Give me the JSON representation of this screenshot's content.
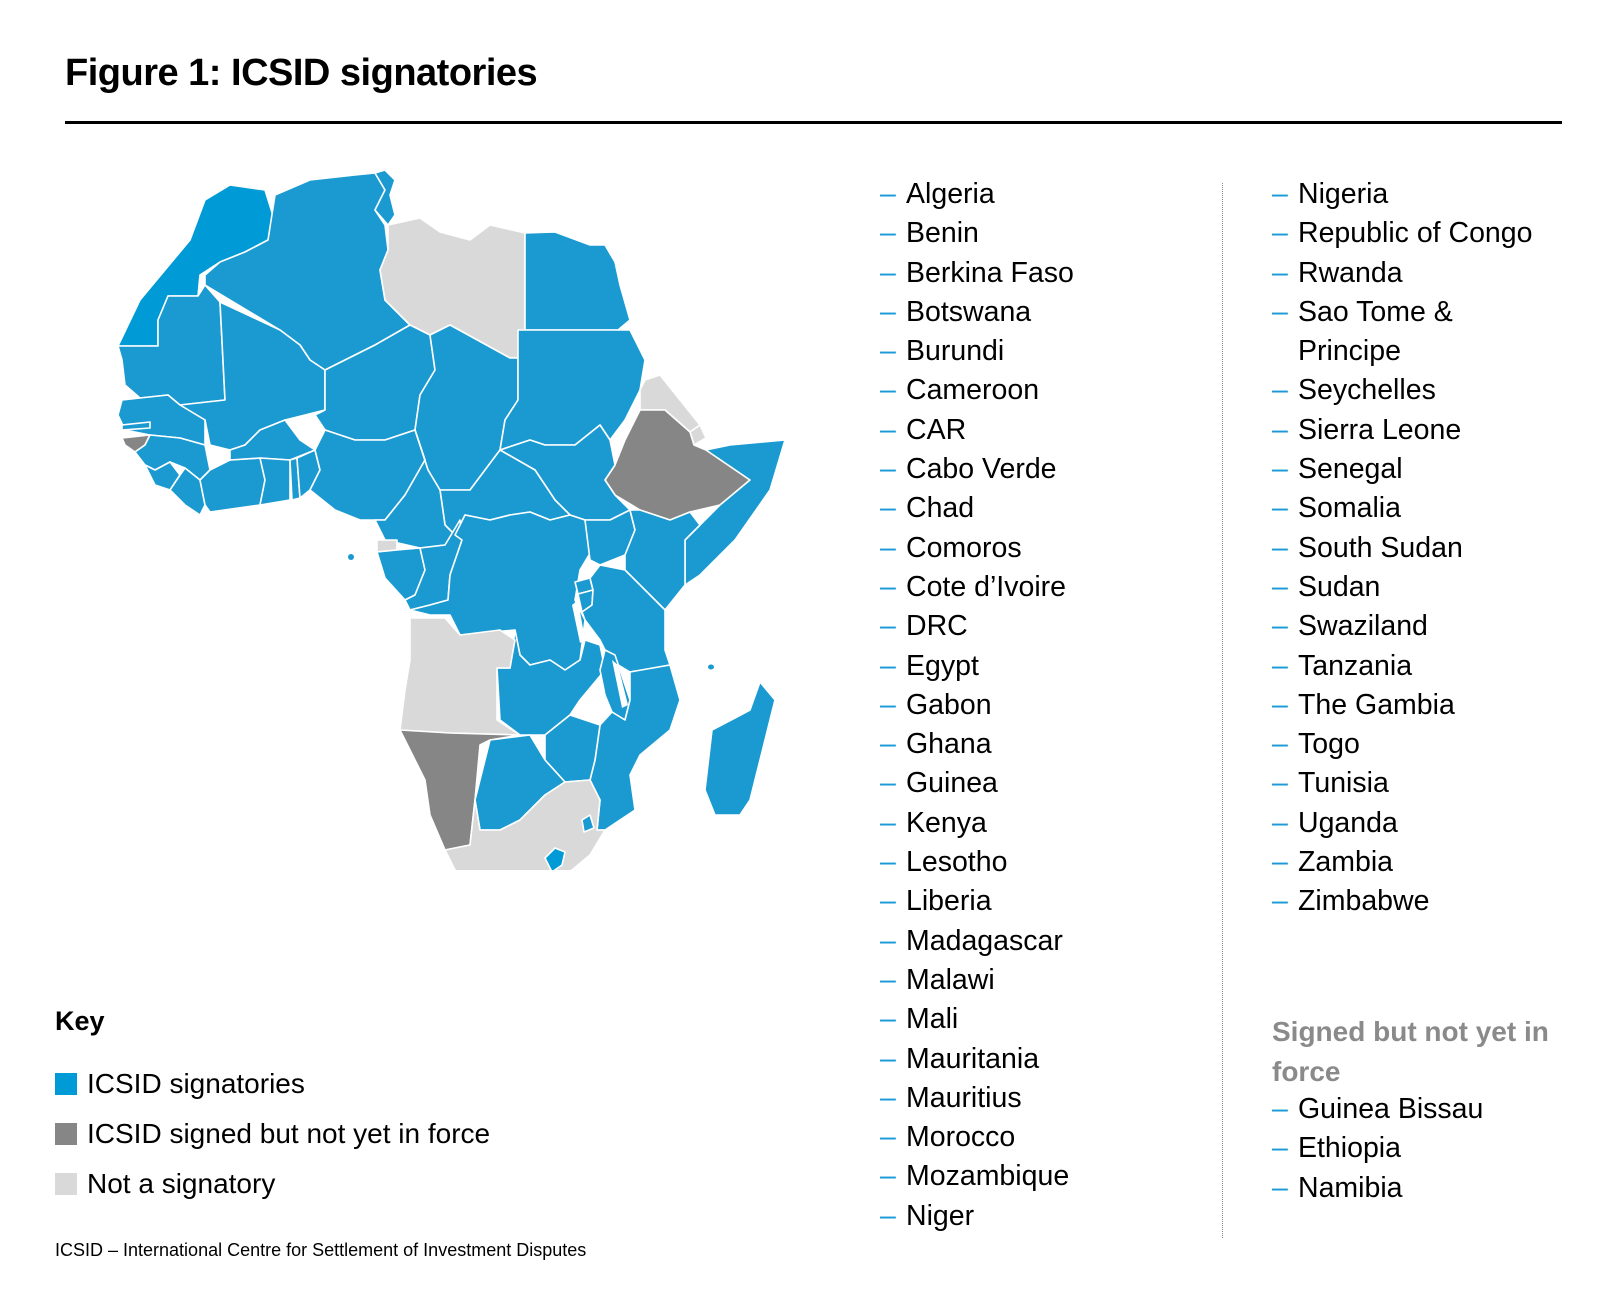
{
  "title": "Figure 1: ICSID signatories",
  "colors": {
    "signatory": "#1a9ad0",
    "morocco": "#009ad6",
    "signed_not_in_force": "#868686",
    "not_signatory": "#d9d9d9",
    "dash": "#1a9ad6"
  },
  "key": {
    "title": "Key",
    "items": [
      {
        "label": "ICSID signatories",
        "status": "signatory"
      },
      {
        "label": "ICSID signed but not yet in force",
        "status": "signed_not_in_force"
      },
      {
        "label": "Not a signatory",
        "status": "not_signatory"
      }
    ]
  },
  "signatories_column_1": [
    "Algeria",
    "Benin",
    "Berkina Faso",
    "Botswana",
    "Burundi",
    "Cameroon",
    "CAR",
    "Cabo Verde",
    "Chad",
    "Comoros",
    "Cote d’Ivoire",
    "DRC",
    "Egypt",
    "Gabon",
    "Ghana",
    "Guinea",
    "Kenya",
    "Lesotho",
    "Liberia",
    "Madagascar",
    "Malawi",
    "Mali",
    "Mauritania",
    "Mauritius",
    "Morocco",
    "Mozambique",
    "Niger"
  ],
  "signatories_column_2": [
    "Nigeria",
    "Republic of Congo",
    "Rwanda",
    "Sao Tome &\nPrincipe",
    "Seychelles",
    "Sierra Leone",
    "Senegal",
    "Somalia",
    "South Sudan",
    "Sudan",
    "Swaziland",
    "Tanzania",
    "The Gambia",
    "Togo",
    "Tunisia",
    "Uganda",
    "Zambia",
    "Zimbabwe"
  ],
  "signed_not_in_force": {
    "heading": "Signed but not yet in force",
    "items": [
      "Guinea Bissau",
      "Ethiopia",
      "Namibia"
    ]
  },
  "dash_glyph": "–",
  "footer": "ICSID – International Centre for Settlement of Investment Disputes"
}
